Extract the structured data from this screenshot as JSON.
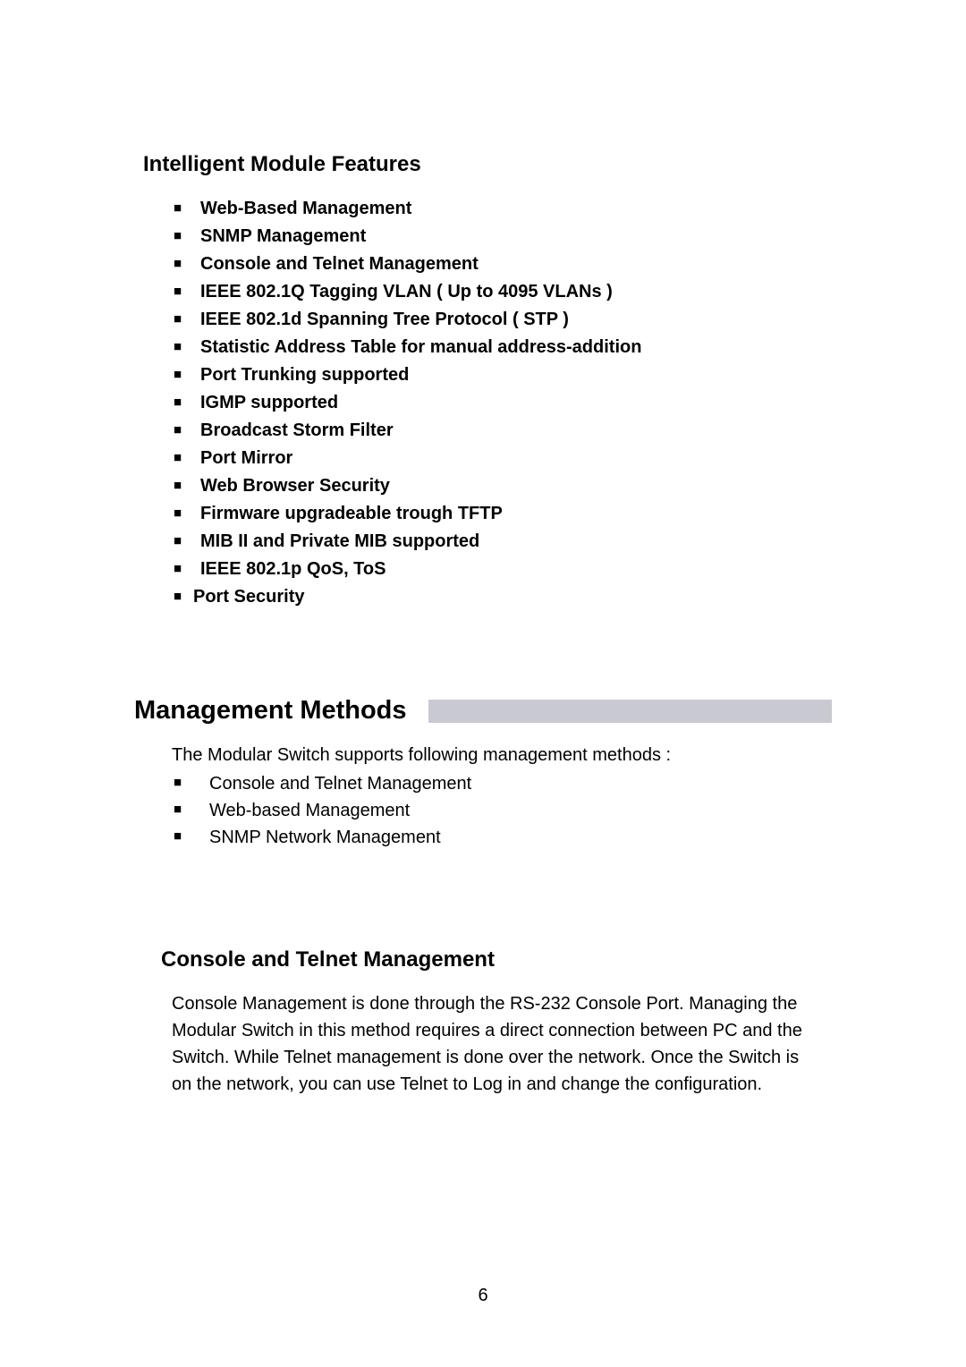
{
  "features_section": {
    "title": "Intelligent Module Features",
    "items": [
      "Web-Based Management",
      "SNMP Management",
      "Console and Telnet Management",
      "IEEE 802.1Q Tagging VLAN ( Up to 4095 VLANs )",
      "IEEE 802.1d Spanning Tree Protocol ( STP )",
      "Statistic Address Table for manual address-addition",
      "Port Trunking supported",
      "IGMP supported",
      "Broadcast Storm Filter",
      "Port Mirror",
      "Web Browser Security",
      "Firmware upgradeable trough TFTP",
      "MIB II and Private MIB supported",
      "IEEE 802.1p QoS, ToS",
      "Port Security"
    ]
  },
  "methods_section": {
    "title": "Management Methods",
    "intro": "The Modular Switch supports following management methods :",
    "items": [
      "Console and Telnet Management",
      "Web-based Management",
      "SNMP Network Management"
    ]
  },
  "console_section": {
    "title": "Console and Telnet Management",
    "paragraph": "Console Management is done through the RS-232 Console Port. Managing the Modular Switch in this method requires a direct connection between PC and the Switch. While Telnet management is done over the network. Once the Switch is on the network, you can use Telnet to Log in and change the configuration."
  },
  "page_number": "6",
  "styling": {
    "background_color": "#ffffff",
    "text_color": "#000000",
    "bar_color": "#c9c9d1",
    "heading1_fontsize": 24,
    "heading2_fontsize": 29,
    "body_fontsize": 20,
    "bullet_glyph": "■"
  }
}
